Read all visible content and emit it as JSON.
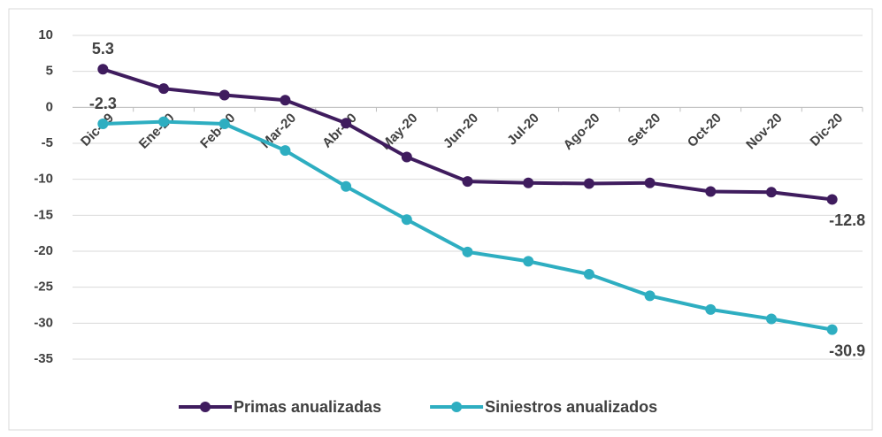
{
  "chart_data": {
    "type": "line",
    "categories": [
      "Dic-19",
      "Ene-20",
      "Feb-20",
      "Mar-20",
      "Abr-20",
      "May-20",
      "Jun-20",
      "Jul-20",
      "Ago-20",
      "Set-20",
      "Oct-20",
      "Nov-20",
      "Dic-20"
    ],
    "series": [
      {
        "name": "Primas anualizadas",
        "color": "#3f1c5e",
        "values": [
          5.3,
          2.6,
          1.7,
          1.0,
          -2.2,
          -6.9,
          -10.3,
          -10.5,
          -10.6,
          -10.5,
          -11.7,
          -11.8,
          -12.8
        ],
        "value_labels": [
          "5.3",
          null,
          null,
          null,
          null,
          null,
          null,
          null,
          null,
          null,
          null,
          null,
          "-12.8"
        ]
      },
      {
        "name": "Siniestros anualizados",
        "color": "#2eaec1",
        "values": [
          -2.3,
          -2.0,
          -2.3,
          -6.0,
          -11.0,
          -15.6,
          -20.1,
          -21.4,
          -23.2,
          -26.2,
          -28.1,
          -29.4,
          -30.9
        ],
        "value_labels": [
          "-2.3",
          null,
          null,
          null,
          null,
          null,
          null,
          null,
          null,
          null,
          null,
          null,
          "-30.9"
        ]
      }
    ],
    "ylim": [
      -35,
      10
    ],
    "yticks": [
      10,
      5,
      0,
      -5,
      -10,
      -15,
      -20,
      -25,
      -30,
      -35
    ],
    "grid": true,
    "legend": "bottom"
  }
}
